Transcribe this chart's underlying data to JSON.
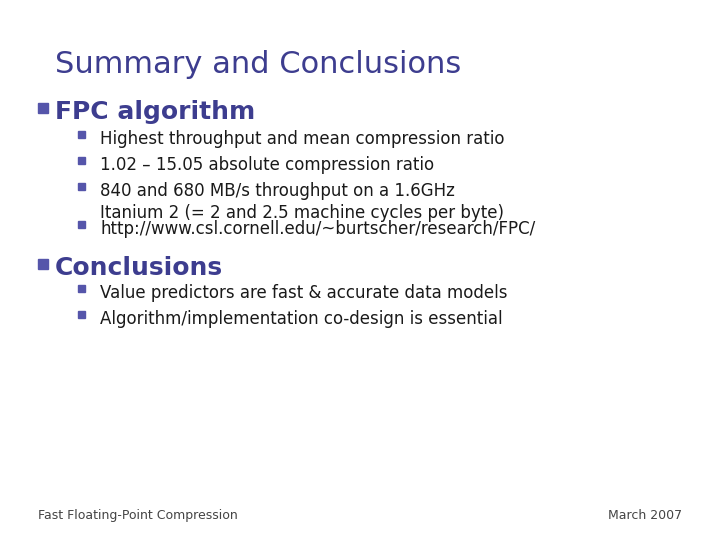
{
  "title": "Summary and Conclusions",
  "title_color": "#3d3d8f",
  "title_fontsize": 22,
  "background_color": "#ffffff",
  "section1_bullet": "FPC algorithm",
  "section1_color": "#3d3d8f",
  "section1_fontsize": 18,
  "sub_bullets_1": [
    "Highest throughput and mean compression ratio",
    "1.02 – 15.05 absolute compression ratio",
    "840 and 680 MB/s throughput on a 1.6GHz\nItanium 2 (= 2 and 2.5 machine cycles per byte)",
    "http://www.csl.cornell.edu/~burtscher/research/FPC/"
  ],
  "section2_bullet": "Conclusions",
  "section2_color": "#3d3d8f",
  "section2_fontsize": 18,
  "sub_bullets_2": [
    "Value predictors are fast & accurate data models",
    "Algorithm/implementation co-design is essential"
  ],
  "sub_bullet_color": "#1a1a1a",
  "sub_bullet_fontsize": 12,
  "footer_left": "Fast Floating-Point Compression",
  "footer_right": "March 2007",
  "footer_fontsize": 9,
  "footer_color": "#444444",
  "bullet_square_color": "#5555aa",
  "sub_bullet_square_color": "#5555aa"
}
